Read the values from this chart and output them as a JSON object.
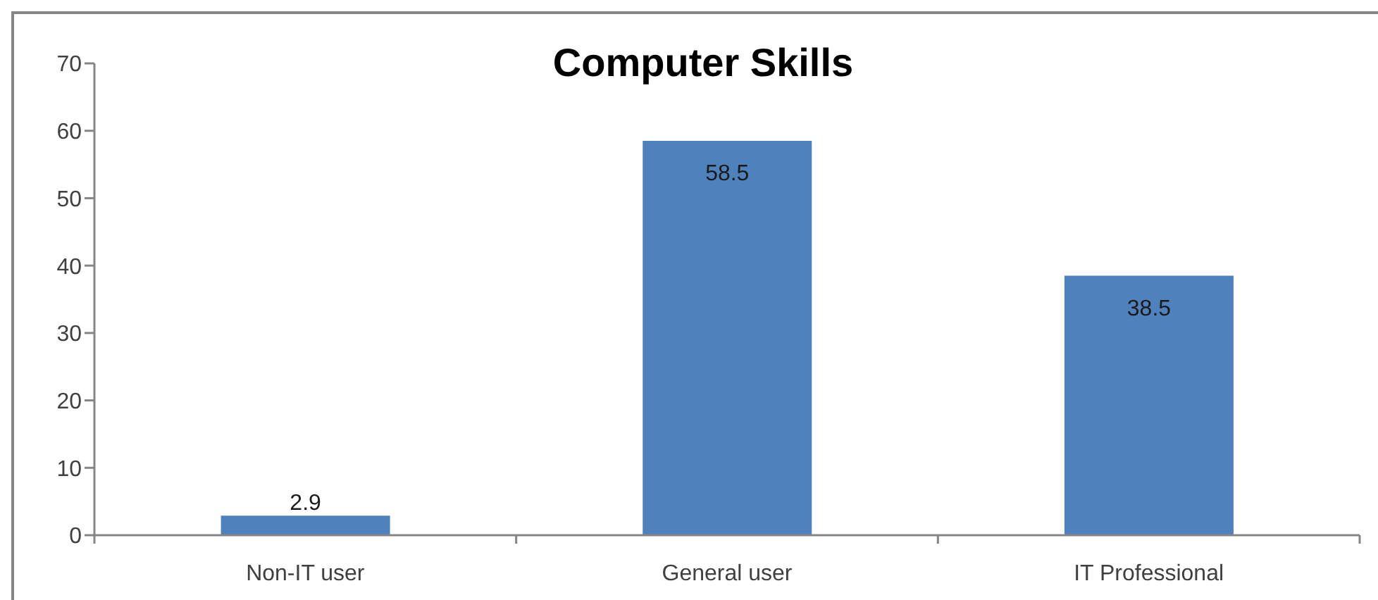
{
  "chart_data": {
    "type": "bar",
    "title": "Computer Skills",
    "categories": [
      "Non-IT user",
      "General user",
      "IT Professional"
    ],
    "values": [
      2.9,
      58.5,
      38.5
    ],
    "color": "#4f81bd",
    "ylim": [
      0,
      70
    ],
    "yticks": [
      0,
      10,
      20,
      30,
      40,
      50,
      60,
      70
    ],
    "data_labels": true
  }
}
